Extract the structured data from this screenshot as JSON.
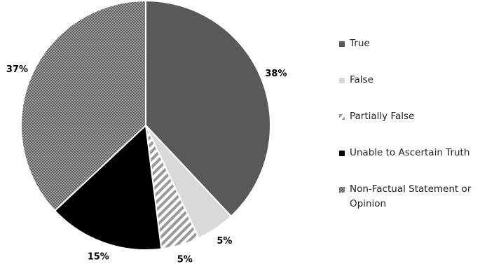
{
  "chart_data": {
    "type": "pie",
    "categories": [
      "True",
      "False",
      "Partially False",
      "Unable to Ascertain Truth",
      "Non-Factual Statement or Opinion"
    ],
    "values": [
      38,
      5,
      5,
      15,
      37
    ],
    "value_labels": [
      "38%",
      "5%",
      "5%",
      "15%",
      "37%"
    ],
    "colors": [
      "#595959",
      "#d9d9d9",
      "#9a9a9a",
      "#000000",
      "#5a5a5a"
    ],
    "patterns": [
      "solid",
      "solid",
      "stripes",
      "solid",
      "dots"
    ],
    "legend": "right"
  }
}
